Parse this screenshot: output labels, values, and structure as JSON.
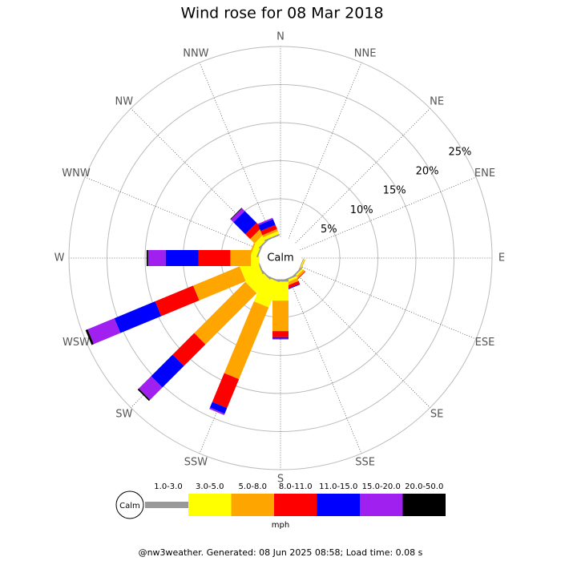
{
  "chart_data": {
    "type": "windrose",
    "title": "Wind rose for 08 Mar 2018",
    "categories": [
      "N",
      "NNE",
      "NE",
      "ENE",
      "E",
      "ESE",
      "SE",
      "SSE",
      "S",
      "SSW",
      "SW",
      "WSW",
      "W",
      "WNW",
      "NW",
      "NNW"
    ],
    "center_label": "Calm",
    "rlim": [
      0,
      25
    ],
    "rticks": [
      {
        "value": 5,
        "label": "5%"
      },
      {
        "value": 10,
        "label": "10%"
      },
      {
        "value": 15,
        "label": "15%"
      },
      {
        "value": 20,
        "label": "20%"
      },
      {
        "value": 25,
        "label": "25%"
      }
    ],
    "grid": true,
    "legend_title": "mph",
    "series": [
      {
        "name": "1.0-3.0",
        "color": "#999999",
        "values": [
          0,
          0,
          0,
          0,
          0,
          0.1,
          0.2,
          0.2,
          0.3,
          0.2,
          0.2,
          0.2,
          0,
          0.2,
          0.2,
          0.2
        ]
      },
      {
        "name": "3.0-5.0",
        "color": "#ffff00",
        "values": [
          0,
          0,
          0,
          0,
          0,
          0.1,
          0.2,
          0.3,
          2.5,
          3.6,
          2.5,
          2.4,
          1.1,
          0.8,
          0.8,
          0.4
        ]
      },
      {
        "name": "5.0-8.0",
        "color": "#ffa500",
        "values": [
          0,
          0,
          0,
          0,
          0,
          0.1,
          0.3,
          0.4,
          4.0,
          10.2,
          9.5,
          6.6,
          2.7,
          0.2,
          0.8,
          0.3
        ]
      },
      {
        "name": "8.0-11.0",
        "color": "#ff0000",
        "values": [
          0,
          0,
          0,
          0,
          0,
          0,
          0.1,
          0.4,
          0.8,
          4.1,
          4.0,
          5.4,
          4.2,
          0,
          0.9,
          0.6
        ]
      },
      {
        "name": "11.0-15.0",
        "color": "#0000ff",
        "values": [
          0,
          0,
          0,
          0,
          0,
          0,
          0,
          0.1,
          0.2,
          0.8,
          4.0,
          5.8,
          4.3,
          0,
          2.2,
          0.8
        ]
      },
      {
        "name": "15.0-20.0",
        "color": "#a020f0",
        "values": [
          0,
          0,
          0,
          0,
          0,
          0,
          0,
          0,
          0.1,
          0.2,
          2.3,
          3.8,
          2.3,
          0,
          0.5,
          0.2
        ]
      },
      {
        "name": "20.0-50.0",
        "color": "#000000",
        "values": [
          0,
          0,
          0,
          0,
          0,
          0,
          0,
          0,
          0,
          0,
          0.2,
          0.3,
          0.2,
          0,
          0.1,
          0
        ]
      }
    ],
    "footer": "@nw3weather. Generated: 08 Jun 2025 08:58; Load time: 0.08 s"
  }
}
